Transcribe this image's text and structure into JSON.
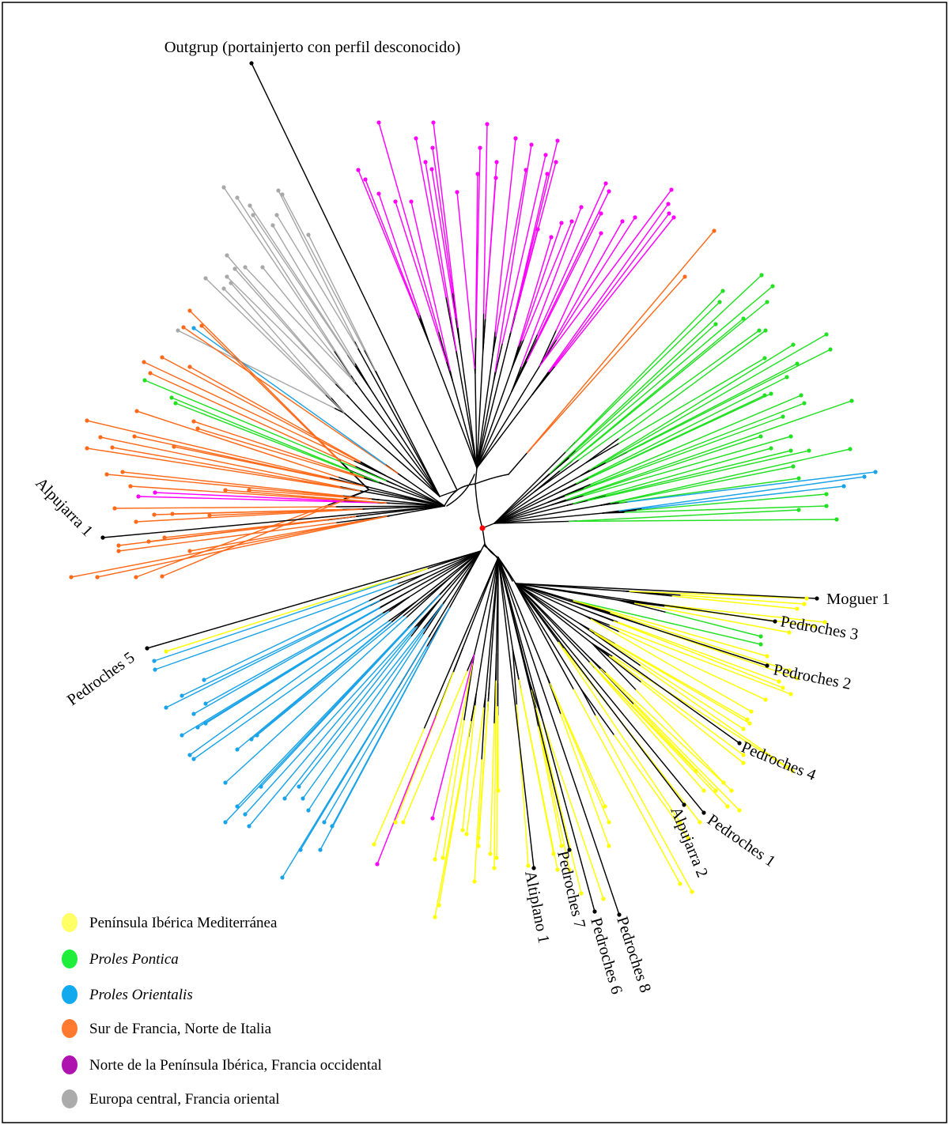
{
  "tree": {
    "outgroup_label": "Outgrup (portainjerto con perfil desconocido)",
    "tip_labels": [
      "Alpujarra 1",
      "Pedroches 5",
      "Moguer 1",
      "Pedroches 3",
      "Pedroches 2",
      "Pedroches 4",
      "Pedroches 1",
      "Alpujarra 2",
      "Pedroches 8",
      "Pedroches 6",
      "Pedroches 7",
      "Altiplano 1"
    ],
    "labeled_branch_color": "#000000",
    "root_color": "#FF0000"
  },
  "legend": {
    "items": [
      {
        "label": "Península Ibérica Mediterránea",
        "swatch_color": "#FFFF66",
        "branch_color": "#FFFF00"
      },
      {
        "label": "Proles Pontica",
        "swatch_color": "#1FEE3A",
        "branch_color": "#22E022"
      },
      {
        "label": "Proles Orientalis",
        "swatch_color": "#12A9EE",
        "branch_color": "#1AA3E8"
      },
      {
        "label": "Sur de Francia, Norte de Italia",
        "swatch_color": "#FF7A2E",
        "branch_color": "#FF6A1A"
      },
      {
        "label": "Norte de la Península Ibérica, Francia occidental",
        "swatch_color": "#AF13AF",
        "branch_color": "#FF00FF"
      },
      {
        "label": "Europa central, Francia oriental",
        "swatch_color": "#ABABAB",
        "branch_color": "#A8A8A8"
      }
    ]
  }
}
